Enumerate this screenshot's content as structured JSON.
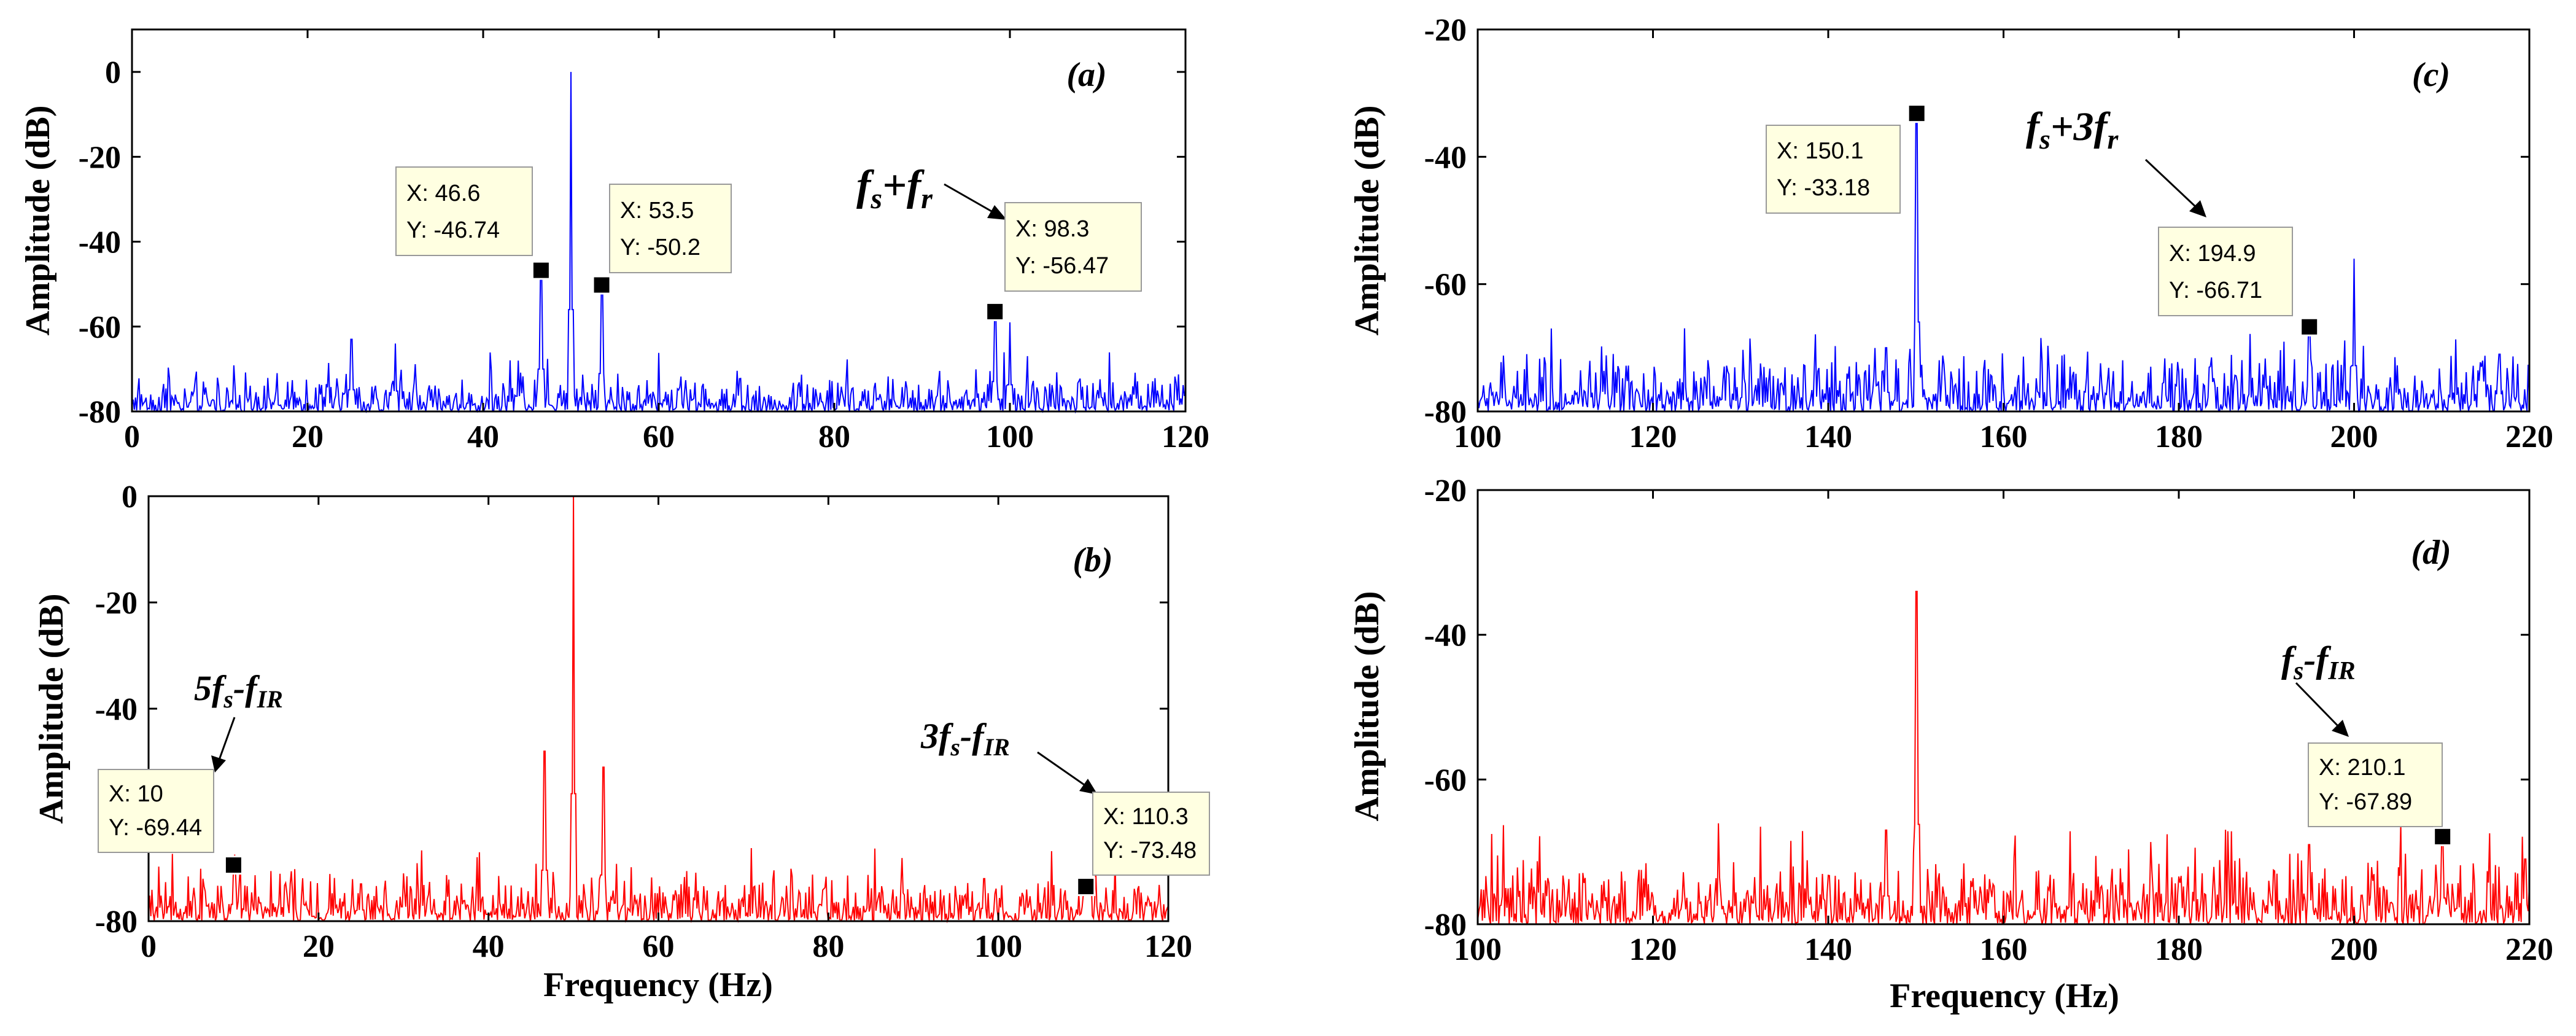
{
  "chart_data": [
    {
      "id": "a",
      "type": "line",
      "panel_label": "(a)",
      "xlabel": "",
      "ylabel": "Amplitude (dB)",
      "xlim": [
        0,
        120
      ],
      "ylim": [
        -80,
        10
      ],
      "xticks": [
        0,
        20,
        40,
        60,
        80,
        100,
        120
      ],
      "yticks": [
        -80,
        -60,
        -40,
        -20,
        0
      ],
      "color": "#0000ff",
      "peaks": [
        {
          "x": 25,
          "y": -63
        },
        {
          "x": 30,
          "y": -64
        },
        {
          "x": 44,
          "y": -68
        },
        {
          "x": 46.6,
          "y": -46.74
        },
        {
          "x": 50,
          "y": 0
        },
        {
          "x": 53.5,
          "y": -50.2
        },
        {
          "x": 98.3,
          "y": -56.47
        },
        {
          "x": 100,
          "y": -59
        }
      ],
      "datatips": [
        {
          "x_text": "X: 46.6",
          "y_text": "Y: -46.74",
          "x": 46.6,
          "y": -46.74
        },
        {
          "x_text": "X: 53.5",
          "y_text": "Y: -50.2",
          "x": 53.5,
          "y": -50.2
        },
        {
          "x_text": "X: 98.3",
          "y_text": "Y: -56.47",
          "x": 98.3,
          "y": -56.47
        }
      ],
      "annotations": [
        {
          "base": "f",
          "sub": "s",
          "op": "+",
          "base2": "f",
          "sub2": "r"
        }
      ]
    },
    {
      "id": "b",
      "type": "line",
      "panel_label": "(b)",
      "xlabel": "Frequency (Hz)",
      "ylabel": "Amplitude (dB)",
      "xlim": [
        0,
        120
      ],
      "ylim": [
        -80,
        0
      ],
      "xticks": [
        0,
        20,
        40,
        60,
        80,
        100,
        120
      ],
      "yticks": [
        -80,
        -40,
        -20,
        0
      ],
      "color": "#ff0000",
      "peaks": [
        {
          "x": 10,
          "y": -69.44
        },
        {
          "x": 25,
          "y": -73
        },
        {
          "x": 30,
          "y": -71
        },
        {
          "x": 46.6,
          "y": -48
        },
        {
          "x": 50,
          "y": 0
        },
        {
          "x": 53.5,
          "y": -51
        },
        {
          "x": 98.3,
          "y": -72
        },
        {
          "x": 110.3,
          "y": -73.48
        }
      ],
      "datatips": [
        {
          "x_text": "X: 10",
          "y_text": "Y: -69.44",
          "x": 10,
          "y": -69.44
        },
        {
          "x_text": "X: 110.3",
          "y_text": "Y: -73.48",
          "x": 110.3,
          "y": -73.48
        }
      ],
      "annotations": [
        {
          "pre": "5",
          "base": "f",
          "sub": "s",
          "op": "-",
          "base2": "f",
          "sub2": "IR"
        },
        {
          "pre": "3",
          "base": "f",
          "sub": "s",
          "op": "-",
          "base2": "f",
          "sub2": "IR"
        }
      ]
    },
    {
      "id": "c",
      "type": "line",
      "panel_label": "(c)",
      "xlabel": "",
      "ylabel": "Amplitude (dB)",
      "xlim": [
        100,
        220
      ],
      "ylim": [
        -80,
        -20
      ],
      "xticks": [
        100,
        120,
        140,
        160,
        180,
        200,
        220
      ],
      "yticks": [
        -80,
        -60,
        -40,
        -20
      ],
      "color": "#0000ff",
      "peaks": [
        {
          "x": 146.6,
          "y": -70
        },
        {
          "x": 150.1,
          "y": -33.18
        },
        {
          "x": 194.9,
          "y": -66.71
        },
        {
          "x": 200,
          "y": -56
        },
        {
          "x": 216.6,
          "y": -71
        }
      ],
      "datatips": [
        {
          "x_text": "X: 150.1",
          "y_text": "Y: -33.18",
          "x": 150.1,
          "y": -33.18
        },
        {
          "x_text": "X: 194.9",
          "y_text": "Y: -66.71",
          "x": 194.9,
          "y": -66.71
        }
      ],
      "annotations": [
        {
          "base": "f",
          "sub": "s",
          "op": "+3",
          "base2": "f",
          "sub2": "r"
        }
      ]
    },
    {
      "id": "d",
      "type": "line",
      "panel_label": "(d)",
      "xlabel": "Frequency (Hz)",
      "ylabel": "Amplitude (dB)",
      "xlim": [
        100,
        220
      ],
      "ylim": [
        -80,
        -20
      ],
      "xticks": [
        100,
        120,
        140,
        160,
        180,
        200,
        220
      ],
      "yticks": [
        -80,
        -60,
        -40,
        -20
      ],
      "color": "#ff0000",
      "peaks": [
        {
          "x": 146.6,
          "y": -67
        },
        {
          "x": 150.1,
          "y": -34
        },
        {
          "x": 194.9,
          "y": -69
        },
        {
          "x": 210.1,
          "y": -67.89
        },
        {
          "x": 219.5,
          "y": -71
        }
      ],
      "datatips": [
        {
          "x_text": "X: 210.1",
          "y_text": "Y: -67.89",
          "x": 210.1,
          "y": -67.89
        }
      ],
      "annotations": [
        {
          "base": "f",
          "sub": "s",
          "op": "-",
          "base2": "f",
          "sub2": "IR"
        }
      ]
    }
  ]
}
